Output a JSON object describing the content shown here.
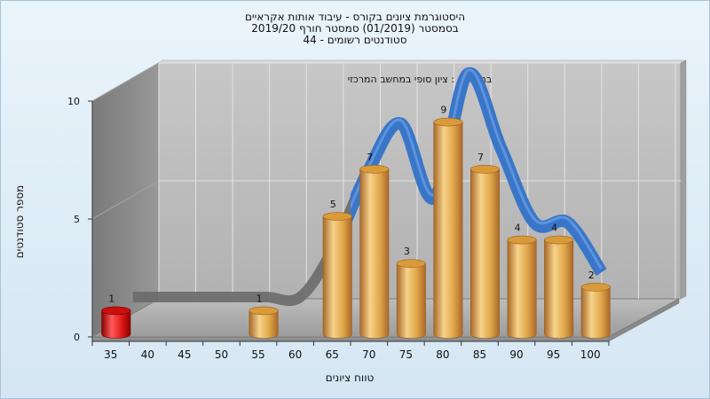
{
  "header": {
    "title_line1": "היסטוגרמת ציונים בקורס - עיבוד אותות אקראיים",
    "title_line2": "בסמסטר  (01/2019)  סמסטר חורף 2019/20",
    "title_line3": "סטודנטים רשומים - 44"
  },
  "chart_data": {
    "type": "bar",
    "subtitle": "במשימה : ציון סופי במחשב המרכזי",
    "xlabel": "טווח ציונים",
    "ylabel": "מספר סטודנטים",
    "categories": [
      "35",
      "40",
      "45",
      "50",
      "55",
      "60",
      "65",
      "70",
      "75",
      "80",
      "85",
      "90",
      "95",
      "100"
    ],
    "ylim": [
      0,
      10
    ],
    "y_ticks": [
      "0",
      "5",
      "10"
    ],
    "series": [
      {
        "values": [
          1,
          0,
          0,
          0,
          1,
          0,
          5,
          7,
          3,
          9,
          7,
          4,
          4,
          2
        ],
        "data_labels": [
          "1",
          "",
          "",
          "",
          "1",
          "",
          "5",
          "7",
          "3",
          "9",
          "7",
          "4",
          "4",
          "2"
        ]
      }
    ],
    "trend_curve": {
      "values": [
        0,
        0,
        0,
        0,
        0,
        0,
        2,
        5,
        7,
        4,
        9,
        6,
        3,
        3,
        1
      ]
    },
    "colors": {
      "failing_bar": "#d41414",
      "passing_bar": "#e0a040",
      "trend_ribbon": "#3a76c8",
      "trend_ribbon_low": "#6a6a6a",
      "back_wall": "#b9b9b9",
      "side_wall": "#8a8a8a",
      "floor": "#a8a8a8"
    },
    "grid": true
  }
}
